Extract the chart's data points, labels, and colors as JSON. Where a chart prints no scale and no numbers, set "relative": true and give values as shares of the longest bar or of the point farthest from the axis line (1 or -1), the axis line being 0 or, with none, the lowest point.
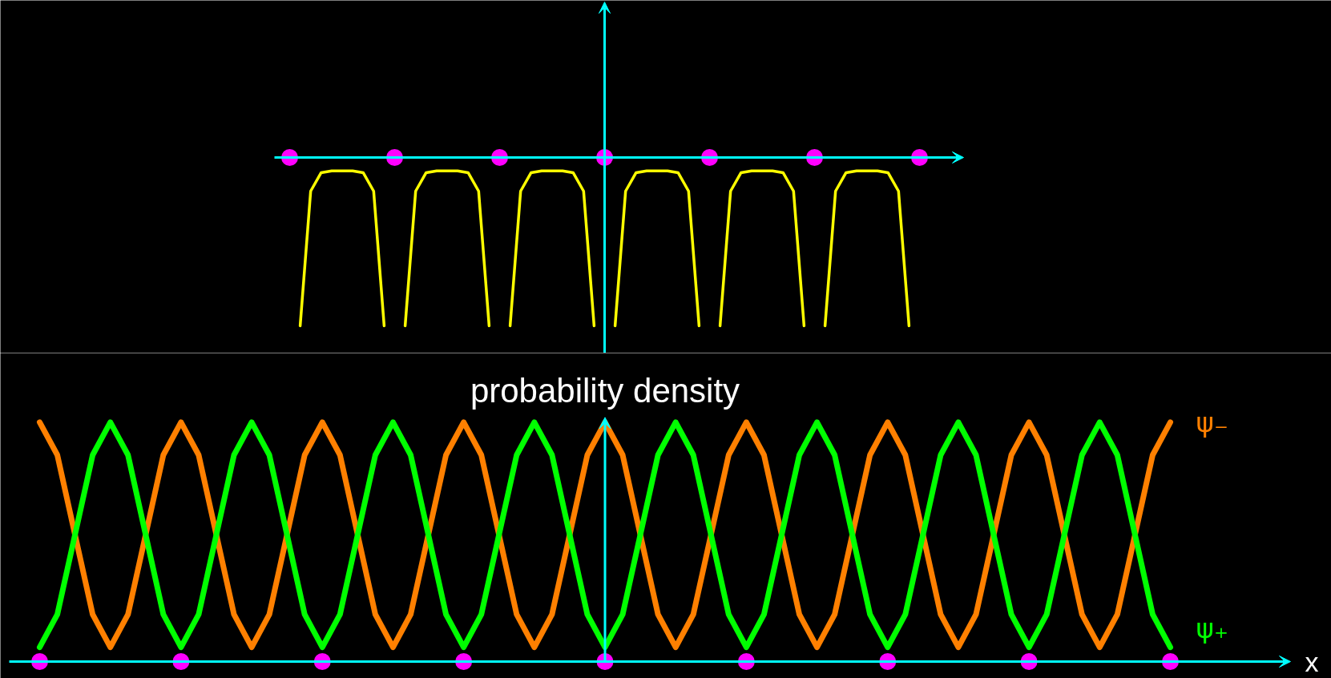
{
  "chart_data": [
    {
      "type": "line",
      "relative": true,
      "tick_labels": false,
      "categories": [
        null,
        null,
        null,
        null,
        null,
        null,
        null,
        null,
        null,
        null,
        null,
        null,
        null,
        null,
        null,
        null,
        null,
        null,
        null,
        null,
        null,
        null,
        null,
        null,
        null,
        null,
        null,
        null,
        null,
        null,
        null,
        null,
        null,
        null,
        null,
        null,
        null,
        null,
        null,
        null,
        null,
        null,
        null,
        null,
        null,
        null,
        null,
        null,
        null,
        null,
        null,
        null,
        null,
        null,
        null,
        null,
        null,
        null,
        null,
        null,
        null
      ],
      "series": [
        {
          "color": "#ffff00",
          "values": [
            null,
            -1,
            -0.2,
            -0.09,
            -0.08,
            -0.08,
            -0.08,
            -0.09,
            -0.2,
            -1,
            null,
            null,
            null,
            null,
            null,
            null,
            null,
            null,
            null,
            null,
            null,
            null,
            null,
            null,
            null,
            null,
            null,
            null,
            null,
            null,
            null,
            null,
            null,
            null,
            null,
            null,
            null,
            null,
            null,
            null,
            null,
            null,
            null,
            null,
            null,
            null,
            null,
            null,
            null,
            null,
            null,
            null,
            null,
            null,
            null,
            null,
            null,
            null,
            null,
            null,
            null
          ]
        },
        {
          "color": "#ffff00",
          "values": [
            null,
            null,
            null,
            null,
            null,
            null,
            null,
            null,
            null,
            null,
            null,
            -1,
            -0.2,
            -0.09,
            -0.08,
            -0.08,
            -0.08,
            -0.09,
            -0.2,
            -1,
            null,
            null,
            null,
            null,
            null,
            null,
            null,
            null,
            null,
            null,
            null,
            null,
            null,
            null,
            null,
            null,
            null,
            null,
            null,
            null,
            null,
            null,
            null,
            null,
            null,
            null,
            null,
            null,
            null,
            null,
            null,
            null,
            null,
            null,
            null,
            null,
            null,
            null,
            null,
            null,
            null
          ]
        },
        {
          "color": "#ffff00",
          "values": [
            null,
            null,
            null,
            null,
            null,
            null,
            null,
            null,
            null,
            null,
            null,
            null,
            null,
            null,
            null,
            null,
            null,
            null,
            null,
            null,
            null,
            -1,
            -0.2,
            -0.09,
            -0.08,
            -0.08,
            -0.08,
            -0.09,
            -0.2,
            -1,
            null,
            null,
            null,
            null,
            null,
            null,
            null,
            null,
            null,
            null,
            null,
            null,
            null,
            null,
            null,
            null,
            null,
            null,
            null,
            null,
            null,
            null,
            null,
            null,
            null,
            null,
            null,
            null,
            null,
            null,
            null
          ]
        },
        {
          "color": "#ffff00",
          "values": [
            null,
            null,
            null,
            null,
            null,
            null,
            null,
            null,
            null,
            null,
            null,
            null,
            null,
            null,
            null,
            null,
            null,
            null,
            null,
            null,
            null,
            null,
            null,
            null,
            null,
            null,
            null,
            null,
            null,
            null,
            null,
            -1,
            -0.2,
            -0.09,
            -0.08,
            -0.08,
            -0.08,
            -0.09,
            -0.2,
            -1,
            null,
            null,
            null,
            null,
            null,
            null,
            null,
            null,
            null,
            null,
            null,
            null,
            null,
            null,
            null,
            null,
            null,
            null,
            null,
            null,
            null
          ]
        },
        {
          "color": "#ffff00",
          "values": [
            null,
            null,
            null,
            null,
            null,
            null,
            null,
            null,
            null,
            null,
            null,
            null,
            null,
            null,
            null,
            null,
            null,
            null,
            null,
            null,
            null,
            null,
            null,
            null,
            null,
            null,
            null,
            null,
            null,
            null,
            null,
            null,
            null,
            null,
            null,
            null,
            null,
            null,
            null,
            null,
            null,
            -1,
            -0.2,
            -0.09,
            -0.08,
            -0.08,
            -0.08,
            -0.09,
            -0.2,
            -1,
            null,
            null,
            null,
            null,
            null,
            null,
            null,
            null,
            null,
            null,
            null
          ]
        },
        {
          "color": "#ffff00",
          "values": [
            null,
            null,
            null,
            null,
            null,
            null,
            null,
            null,
            null,
            null,
            null,
            null,
            null,
            null,
            null,
            null,
            null,
            null,
            null,
            null,
            null,
            null,
            null,
            null,
            null,
            null,
            null,
            null,
            null,
            null,
            null,
            null,
            null,
            null,
            null,
            null,
            null,
            null,
            null,
            null,
            null,
            null,
            null,
            null,
            null,
            null,
            null,
            null,
            null,
            null,
            null,
            -1,
            -0.2,
            -0.09,
            -0.08,
            -0.08,
            -0.08,
            -0.09,
            -0.2,
            -1,
            null
          ]
        }
      ]
    },
    {
      "type": "line",
      "relative": true,
      "tick_labels": false,
      "xlabel": "x",
      "ylabel": "probability density",
      "categories": [
        null,
        null,
        null,
        null,
        null,
        null,
        null,
        null,
        null,
        null,
        null,
        null,
        null,
        null,
        null,
        null,
        null,
        null,
        null,
        null,
        null,
        null,
        null,
        null,
        null,
        null,
        null,
        null,
        null,
        null,
        null,
        null,
        null,
        null,
        null,
        null,
        null,
        null,
        null,
        null,
        null,
        null,
        null,
        null,
        null,
        null,
        null,
        null,
        null,
        null,
        null,
        null,
        null,
        null,
        null,
        null,
        null,
        null,
        null,
        null,
        null,
        null,
        null,
        null,
        null
      ],
      "series": [
        {
          "name": "ψ₋",
          "color": "#ff8000",
          "values": [
            1,
            0.863,
            0.53,
            0.197,
            0.06,
            0.197,
            0.53,
            0.863,
            1,
            0.863,
            0.53,
            0.197,
            0.06,
            0.197,
            0.53,
            0.863,
            1,
            0.863,
            0.53,
            0.197,
            0.06,
            0.197,
            0.53,
            0.863,
            1,
            0.863,
            0.53,
            0.197,
            0.06,
            0.197,
            0.53,
            0.863,
            1,
            0.863,
            0.53,
            0.197,
            0.06,
            0.197,
            0.53,
            0.863,
            1,
            0.863,
            0.53,
            0.197,
            0.06,
            0.197,
            0.53,
            0.863,
            1,
            0.863,
            0.53,
            0.197,
            0.06,
            0.197,
            0.53,
            0.863,
            1,
            0.863,
            0.53,
            0.197,
            0.06,
            0.197,
            0.53,
            0.863,
            1
          ]
        },
        {
          "name": "ψ₊",
          "color": "#00ff00",
          "values": [
            0.06,
            0.197,
            0.53,
            0.863,
            1,
            0.863,
            0.53,
            0.197,
            0.06,
            0.197,
            0.53,
            0.863,
            1,
            0.863,
            0.53,
            0.197,
            0.06,
            0.197,
            0.53,
            0.863,
            1,
            0.863,
            0.53,
            0.197,
            0.06,
            0.197,
            0.53,
            0.863,
            1,
            0.863,
            0.53,
            0.197,
            0.06,
            0.197,
            0.53,
            0.863,
            1,
            0.863,
            0.53,
            0.197,
            0.06,
            0.197,
            0.53,
            0.863,
            1,
            0.863,
            0.53,
            0.197,
            0.06,
            0.197,
            0.53,
            0.863,
            1,
            0.863,
            0.53,
            0.197,
            0.06,
            0.197,
            0.53,
            0.863,
            1,
            0.863,
            0.53,
            0.197,
            0.06
          ]
        }
      ]
    }
  ]
}
